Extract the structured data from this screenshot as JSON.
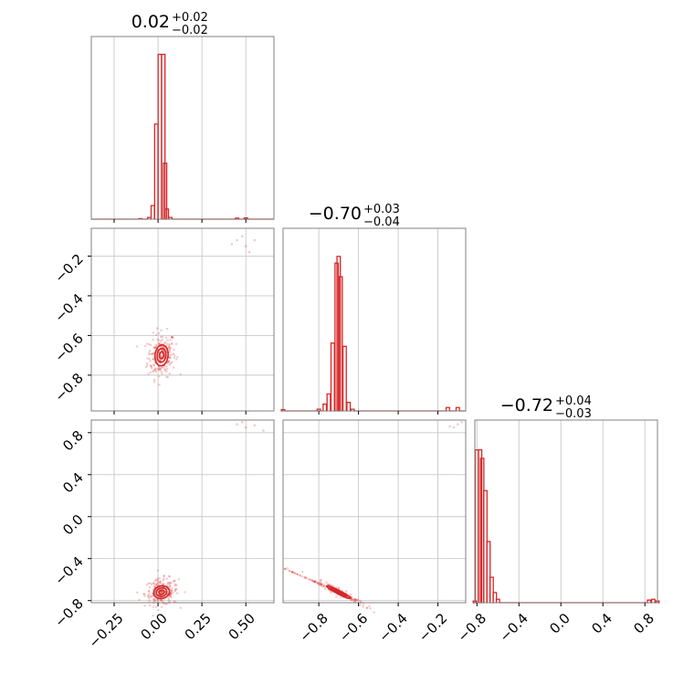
{
  "chart_data": {
    "type": "corner",
    "params": [
      {
        "title_main": "0.02",
        "title_plus": "+0.02",
        "title_minus": "−0.02",
        "range": [
          -0.38,
          0.66
        ]
      },
      {
        "title_main": "−0.70",
        "title_plus": "+0.03",
        "title_minus": "−0.04",
        "range": [
          -0.98,
          -0.06
        ]
      },
      {
        "title_main": "−0.72",
        "title_plus": "+0.04",
        "title_minus": "−0.03",
        "range": [
          -0.82,
          0.92
        ]
      }
    ],
    "xticks": [
      {
        "values": [
          -0.25,
          0.0,
          0.25,
          0.5
        ],
        "labels": [
          "−0.25",
          "0.00",
          "0.25",
          "0.50"
        ]
      },
      {
        "values": [
          -0.8,
          -0.6,
          -0.4,
          -0.2
        ],
        "labels": [
          "−0.8",
          "−0.6",
          "−0.4",
          "−0.2"
        ]
      },
      {
        "values": [
          -0.8,
          -0.4,
          0.0,
          0.4,
          0.8
        ],
        "labels": [
          "−0.8",
          "−0.4",
          "0.0",
          "0.4",
          "0.8"
        ]
      }
    ],
    "yticks": [
      null,
      {
        "values": [
          -0.2,
          -0.4,
          -0.6,
          -0.8
        ],
        "labels": [
          "−0.2",
          "−0.4",
          "−0.6",
          "−0.8"
        ]
      },
      {
        "values": [
          0.8,
          0.4,
          0.0,
          -0.4,
          -0.8
        ],
        "labels": [
          "0.8",
          "0.4",
          "0.0",
          "−0.4",
          "−0.8"
        ]
      }
    ],
    "hist1d": [
      {
        "bins": [
          [
            -0.1,
            0.003
          ],
          [
            -0.05,
            0.01
          ],
          [
            -0.03,
            0.08
          ],
          [
            -0.01,
            0.56
          ],
          [
            0.01,
            0.97
          ],
          [
            0.03,
            0.97
          ],
          [
            0.04,
            0.33
          ],
          [
            0.05,
            0.06
          ],
          [
            0.07,
            0.01
          ],
          [
            0.45,
            0.006
          ],
          [
            0.5,
            0.007
          ]
        ]
      },
      {
        "bins": [
          [
            -0.98,
            0.008
          ],
          [
            -0.8,
            0.01
          ],
          [
            -0.77,
            0.04
          ],
          [
            -0.75,
            0.1
          ],
          [
            -0.73,
            0.4
          ],
          [
            -0.71,
            0.87
          ],
          [
            -0.7,
            0.91
          ],
          [
            -0.69,
            0.79
          ],
          [
            -0.67,
            0.38
          ],
          [
            -0.65,
            0.05
          ],
          [
            -0.63,
            0.01
          ],
          [
            -0.15,
            0.02
          ],
          [
            -0.1,
            0.02
          ]
        ]
      },
      {
        "bins": [
          [
            -0.82,
            0.01
          ],
          [
            -0.8,
            0.9
          ],
          [
            -0.77,
            0.9
          ],
          [
            -0.75,
            0.85
          ],
          [
            -0.72,
            0.66
          ],
          [
            -0.69,
            0.36
          ],
          [
            -0.66,
            0.15
          ],
          [
            -0.63,
            0.06
          ],
          [
            -0.6,
            0.02
          ],
          [
            0.84,
            0.015
          ],
          [
            0.88,
            0.02
          ],
          [
            0.92,
            0.01
          ]
        ]
      }
    ],
    "scatter": [
      {
        "i": 0,
        "j": 1,
        "center": [
          0.02,
          -0.7
        ],
        "spread": [
          0.025,
          0.035
        ],
        "rho": 0.1,
        "contour_sizes": [
          0.5,
          1.0,
          1.5
        ],
        "extras": [
          [
            0.45,
            -0.12
          ],
          [
            0.5,
            -0.15
          ],
          [
            0.48,
            -0.1
          ],
          [
            0.55,
            -0.12
          ],
          [
            0.52,
            -0.18
          ],
          [
            0.42,
            -0.14
          ]
        ]
      },
      {
        "i": 0,
        "j": 2,
        "center": [
          0.02,
          -0.72
        ],
        "spread": [
          0.03,
          0.04
        ],
        "rho": 0.1,
        "contour_sizes": [
          0.5,
          1.0,
          1.5
        ],
        "extras": [
          [
            0.45,
            0.88
          ],
          [
            0.5,
            0.85
          ],
          [
            0.55,
            0.87
          ],
          [
            0.48,
            0.9
          ],
          [
            0.6,
            0.82
          ]
        ]
      },
      {
        "i": 1,
        "j": 2,
        "center": [
          -0.7,
          -0.72
        ],
        "spread": [
          0.04,
          0.04
        ],
        "rho": -0.95,
        "contour_sizes": [
          0.5,
          1.0,
          1.5
        ],
        "extras": [
          [
            -0.12,
            0.85
          ],
          [
            -0.1,
            0.88
          ],
          [
            -0.08,
            0.9
          ],
          [
            -0.14,
            0.86
          ]
        ]
      }
    ],
    "grid": true,
    "color": "#d62728"
  }
}
